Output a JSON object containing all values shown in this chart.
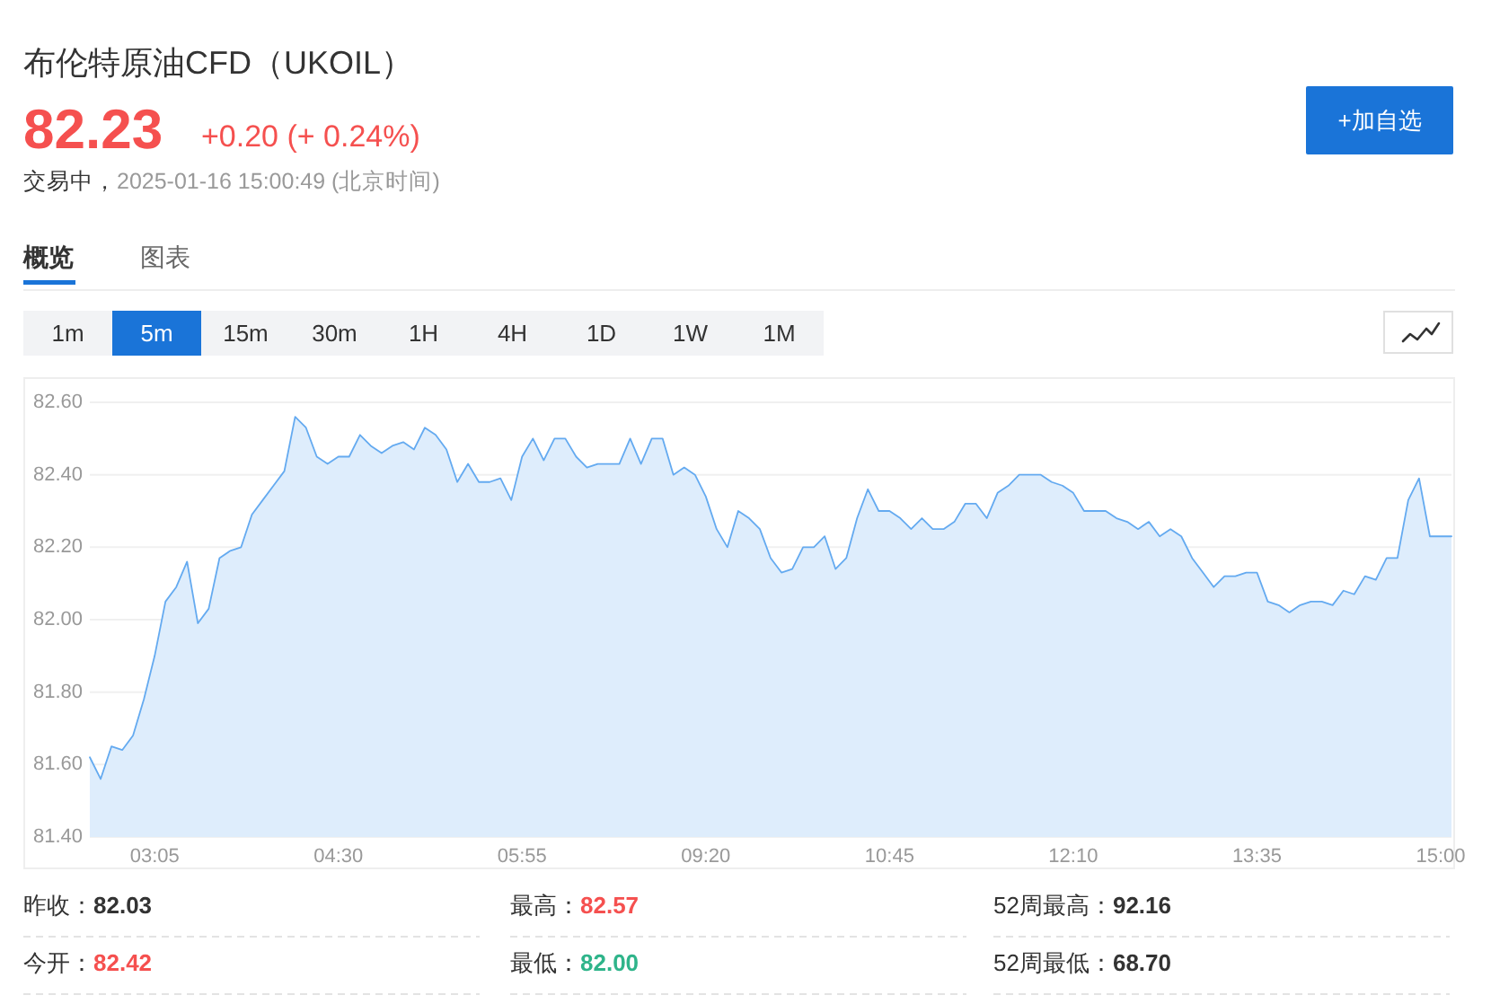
{
  "chart_data": {
    "type": "area",
    "title": "布伦特原油CFD（UKOIL）",
    "annotations": [
      "82.23",
      "+0.20 (+ 0.24%)",
      "交易中，",
      "2025-01-16 15:00:49 (北京时间)",
      "+加自选",
      "概览",
      "图表",
      "1m",
      "5m",
      "15m",
      "30m",
      "1H",
      "4H",
      "1D",
      "1W",
      "1M",
      "昨收：",
      "82.03",
      "最高：",
      "82.57",
      "52周最高：",
      "92.16",
      "今开：",
      "82.42",
      "最低：",
      "82.00",
      "52周最低：",
      "68.70"
    ],
    "categories": [
      null,
      null,
      null,
      null,
      null,
      null,
      "03:05",
      null,
      null,
      null,
      null,
      null,
      null,
      null,
      null,
      null,
      null,
      null,
      null,
      null,
      null,
      null,
      null,
      "04:30",
      null,
      null,
      null,
      null,
      null,
      null,
      null,
      null,
      null,
      null,
      null,
      null,
      null,
      null,
      null,
      null,
      "05:55",
      null,
      null,
      null,
      null,
      null,
      null,
      null,
      null,
      null,
      null,
      null,
      null,
      null,
      null,
      null,
      null,
      "09:20",
      null,
      null,
      null,
      null,
      null,
      null,
      null,
      null,
      null,
      null,
      null,
      null,
      null,
      null,
      null,
      null,
      "10:45",
      null,
      null,
      null,
      null,
      null,
      null,
      null,
      null,
      null,
      null,
      null,
      null,
      null,
      null,
      null,
      null,
      "12:10",
      null,
      null,
      null,
      null,
      null,
      null,
      null,
      null,
      null,
      null,
      null,
      null,
      null,
      null,
      null,
      null,
      "13:35",
      null,
      null,
      null,
      null,
      null,
      null,
      null,
      null,
      null,
      null,
      null,
      null,
      null,
      null,
      null,
      null,
      "15:00",
      null
    ],
    "series": [
      {
        "color": "#64aaf0",
        "values": [
          81.62,
          81.56,
          81.65,
          81.64,
          81.68,
          81.78,
          81.9,
          82.05,
          82.09,
          82.16,
          81.99,
          82.03,
          82.17,
          82.19,
          82.2,
          82.29,
          82.33,
          82.37,
          82.41,
          82.56,
          82.53,
          82.45,
          82.43,
          82.45,
          82.45,
          82.51,
          82.48,
          82.46,
          82.48,
          82.49,
          82.47,
          82.53,
          82.51,
          82.47,
          82.38,
          82.43,
          82.38,
          82.38,
          82.39,
          82.33,
          82.45,
          82.5,
          82.44,
          82.5,
          82.5,
          82.45,
          82.42,
          82.43,
          82.43,
          82.43,
          82.5,
          82.43,
          82.5,
          82.5,
          82.4,
          82.42,
          82.4,
          82.34,
          82.25,
          82.2,
          82.3,
          82.28,
          82.25,
          82.17,
          82.13,
          82.14,
          82.2,
          82.2,
          82.23,
          82.14,
          82.17,
          82.28,
          82.36,
          82.3,
          82.3,
          82.28,
          82.25,
          82.28,
          82.25,
          82.25,
          82.27,
          82.32,
          82.32,
          82.28,
          82.35,
          82.37,
          82.4,
          82.4,
          82.4,
          82.38,
          82.37,
          82.35,
          82.3,
          82.3,
          82.3,
          82.28,
          82.27,
          82.25,
          82.27,
          82.23,
          82.25,
          82.23,
          82.17,
          82.13,
          82.09,
          82.12,
          82.12,
          82.13,
          82.13,
          82.05,
          82.04,
          82.02,
          82.04,
          82.05,
          82.05,
          82.04,
          82.08,
          82.07,
          82.12,
          82.11,
          82.17,
          82.17,
          82.33,
          82.39,
          82.23,
          82.23,
          82.23
        ]
      }
    ],
    "ylim": [
      81.4,
      82.6
    ],
    "yticks": [
      {
        "value": 81.4,
        "label": "81.40"
      },
      {
        "value": 81.6,
        "label": "81.60"
      },
      {
        "value": 81.8,
        "label": "81.80"
      },
      {
        "value": 82.0,
        "label": "82.00"
      },
      {
        "value": 82.2,
        "label": "82.20"
      },
      {
        "value": 82.4,
        "label": "82.40"
      },
      {
        "value": 82.6,
        "label": "82.60"
      }
    ],
    "grid": "y"
  }
}
